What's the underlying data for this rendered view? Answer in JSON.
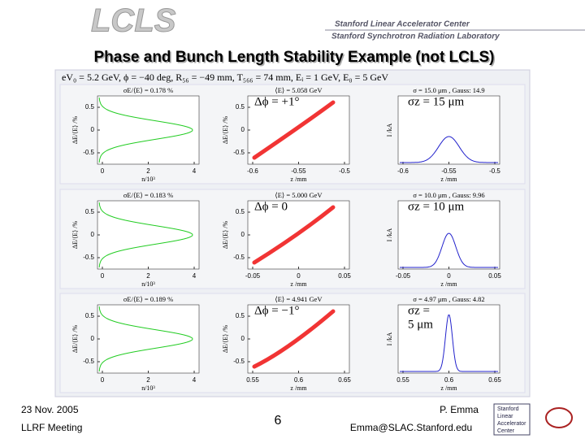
{
  "header": {
    "logo": "LCLS",
    "org_line_1": "Stanford Linear Accelerator Center",
    "org_line_2": "Stanford Synchrotron Radiation Laboratory"
  },
  "title": "Phase and Bunch Length Stability Example (not LCLS)",
  "parameters": "eV₀ = 5.2 GeV, ϕ = −40 deg, R₅₆ = −49 mm, T₅₆₆ = 74 mm, Eᵢ = 1 GeV, E₀ = 5 GeV",
  "rows": [
    {
      "left": {
        "title": "σE/⟨E⟩ = 0.178 %",
        "yticks": [
          "0.5",
          "0",
          "-0.5"
        ],
        "ylabel": "ΔE/⟨E⟩ /%",
        "xticks": [
          "0",
          "2",
          "4"
        ],
        "xlabel": "n/10³"
      },
      "middle": {
        "title": "⟨E⟩ = 5.058 GeV",
        "yticks": [
          "0.5",
          "0",
          "-0.5"
        ],
        "ylabel": "ΔE/⟨E⟩ /%",
        "xticks": [
          "-0.6",
          "-0.55",
          "-0.5"
        ],
        "xlabel": "z /mm",
        "annotation": "Δϕ = +1°"
      },
      "right": {
        "title": "σ = 15.0 μm , Gauss: 14.9",
        "ylabel": "I /kA",
        "xticks": [
          "-0.6",
          "-0.55",
          "-0.5"
        ],
        "xlabel": "z /mm",
        "annotation": [
          "σz = 15 μm"
        ]
      }
    },
    {
      "left": {
        "title": "σE/⟨E⟩ = 0.183 %",
        "yticks": [
          "0.5",
          "0",
          "-0.5"
        ],
        "ylabel": "ΔE/⟨E⟩ /%",
        "xticks": [
          "0",
          "2",
          "4"
        ],
        "xlabel": "n/10³"
      },
      "middle": {
        "title": "⟨E⟩ = 5.000 GeV",
        "yticks": [
          "0.5",
          "0",
          "-0.5"
        ],
        "ylabel": "ΔE/⟨E⟩ /%",
        "xticks": [
          "-0.05",
          "0",
          "0.05"
        ],
        "xlabel": "z /mm",
        "annotation": "Δϕ = 0"
      },
      "right": {
        "title": "σ = 10.0 μm , Gauss: 9.96",
        "ylabel": "I /kA",
        "xticks": [
          "-0.05",
          "0",
          "0.05"
        ],
        "xlabel": "z /mm",
        "annotation": [
          "σz = 10 μm"
        ]
      }
    },
    {
      "left": {
        "title": "σE/⟨E⟩ = 0.189 %",
        "yticks": [
          "0.5",
          "0",
          "-0.5"
        ],
        "ylabel": "ΔE/⟨E⟩ /%",
        "xticks": [
          "0",
          "2",
          "4"
        ],
        "xlabel": "n/10³"
      },
      "middle": {
        "title": "⟨E⟩ = 4.941 GeV",
        "yticks": [
          "0.5",
          "0",
          "-0.5"
        ],
        "ylabel": "ΔE/⟨E⟩ /%",
        "xticks": [
          "0.55",
          "0.6",
          "0.65"
        ],
        "xlabel": "z /mm",
        "annotation": "Δϕ = −1°"
      },
      "right": {
        "title": "σ = 4.97 μm , Gauss: 4.82",
        "ylabel": "I /kA",
        "xticks": [
          "0.55",
          "0.6",
          "0.65"
        ],
        "xlabel": "z /mm",
        "annotation": [
          "σz =",
          "5 μm"
        ]
      }
    }
  ],
  "footer": {
    "date": "23 Nov. 2005",
    "meeting": "LLRF Meeting",
    "page": "6",
    "author": "P. Emma",
    "email": "Emma@SLAC.Stanford.edu",
    "badge": [
      "Stanford",
      "Linear",
      "Accelerator",
      "Center"
    ]
  }
}
